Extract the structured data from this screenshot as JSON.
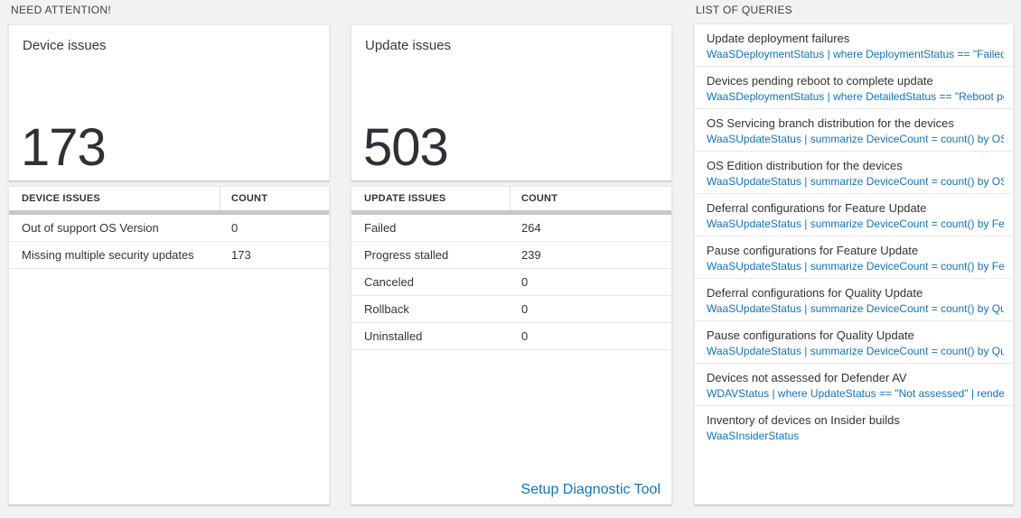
{
  "colors": {
    "page_background": "#f2f2f2",
    "tile_background": "#ffffff",
    "accent_blue": "#1273b9",
    "text_dark": "#333333",
    "big_number_color": "#2d3137",
    "thick_separator": "#c6c6c6"
  },
  "need_attention": {
    "header": "NEED ATTENTION!",
    "device_card": {
      "title": "Device issues",
      "value": "173",
      "table": {
        "columns": [
          "DEVICE ISSUES",
          "COUNT"
        ],
        "rows": [
          {
            "label": "Out of support OS Version",
            "count": "0"
          },
          {
            "label": "Missing multiple security updates",
            "count": "173"
          }
        ]
      }
    },
    "update_card": {
      "title": "Update issues",
      "value": "503",
      "table": {
        "columns": [
          "UPDATE ISSUES",
          "COUNT"
        ],
        "rows": [
          {
            "label": "Failed",
            "count": "264"
          },
          {
            "label": "Progress stalled",
            "count": "239"
          },
          {
            "label": "Canceled",
            "count": "0"
          },
          {
            "label": "Rollback",
            "count": "0"
          },
          {
            "label": "Uninstalled",
            "count": "0"
          }
        ]
      },
      "footer_link": "Setup Diagnostic Tool"
    }
  },
  "queries_panel": {
    "header": "LIST OF QUERIES",
    "items": [
      {
        "title": "Update deployment failures",
        "query": "WaaSDeploymentStatus | where DeploymentStatus == \"Failed\" |..."
      },
      {
        "title": "Devices pending reboot to complete update",
        "query": "WaaSDeploymentStatus | where DetailedStatus == \"Reboot pend..."
      },
      {
        "title": "OS Servicing branch distribution for the devices",
        "query": "WaaSUpdateStatus | summarize DeviceCount = count() by OSSer..."
      },
      {
        "title": "OS Edition distribution for the devices",
        "query": "WaaSUpdateStatus | summarize DeviceCount = count() by OSEdit..."
      },
      {
        "title": "Deferral configurations for Feature Update",
        "query": "WaaSUpdateStatus | summarize DeviceCount = count() by Featur..."
      },
      {
        "title": "Pause configurations for Feature Update",
        "query": "WaaSUpdateStatus | summarize DeviceCount = count() by Featur..."
      },
      {
        "title": "Deferral configurations for Quality Update",
        "query": "WaaSUpdateStatus | summarize DeviceCount = count() by Qualit..."
      },
      {
        "title": "Pause configurations for Quality Update",
        "query": "WaaSUpdateStatus | summarize DeviceCount = count() by Qualit..."
      },
      {
        "title": "Devices not assessed for Defender AV",
        "query": "WDAVStatus | where UpdateStatus == \"Not assessed\" | render ta..."
      },
      {
        "title": "Inventory of devices on Insider builds",
        "query": "WaaSInsiderStatus"
      }
    ]
  }
}
